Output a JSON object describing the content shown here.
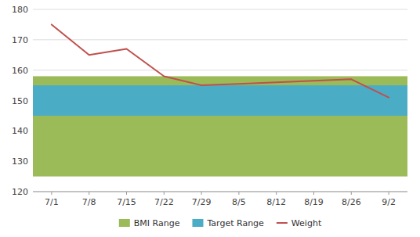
{
  "chart_data": {
    "type": "line",
    "categories": [
      "7/1",
      "7/8",
      "7/15",
      "7/22",
      "7/29",
      "8/5",
      "8/12",
      "8/19",
      "8/26",
      "9/2"
    ],
    "series": [
      {
        "name": "Weight",
        "color": "#C0504D",
        "values": [
          175,
          165,
          167,
          158,
          155,
          155.5,
          156,
          156.5,
          157,
          151
        ]
      }
    ],
    "bands": [
      {
        "name": "BMI Range",
        "color": "#9BBB59",
        "low": 125,
        "high": 158
      },
      {
        "name": "Target Range",
        "color": "#4BACC6",
        "low": 145,
        "high": 155
      }
    ],
    "ylim": [
      120,
      180
    ],
    "yticks": [
      120,
      130,
      140,
      150,
      160,
      170,
      180
    ],
    "grid": true,
    "legend": "bottom"
  }
}
